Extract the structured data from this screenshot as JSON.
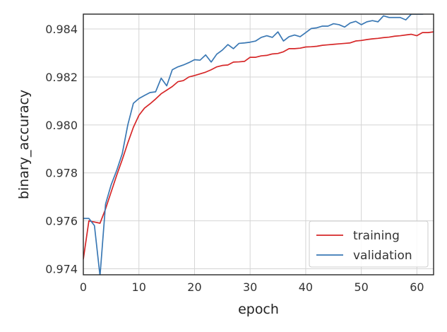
{
  "chart_data": {
    "type": "line",
    "title": "",
    "xlabel": "epoch",
    "ylabel": "binary_accuracy",
    "xlim": [
      0,
      63
    ],
    "ylim": [
      0.97375,
      0.98462
    ],
    "xticks": [
      "0",
      "10",
      "20",
      "30",
      "40",
      "50",
      "60"
    ],
    "xtick_values": [
      0,
      10,
      20,
      30,
      40,
      50,
      60
    ],
    "yticks": [
      "0.974",
      "0.976",
      "0.978",
      "0.980",
      "0.982",
      "0.984"
    ],
    "ytick_values": [
      0.974,
      0.976,
      0.978,
      0.98,
      0.982,
      0.984
    ],
    "grid": true,
    "legend": "lower-right",
    "series": [
      {
        "name": "training",
        "color": "#d62728",
        "values": [
          0.9744,
          0.976,
          0.97595,
          0.9759,
          0.9765,
          0.9772,
          0.9779,
          0.97855,
          0.97925,
          0.9799,
          0.9804,
          0.9807,
          0.98088,
          0.98108,
          0.9813,
          0.98145,
          0.9816,
          0.9818,
          0.98185,
          0.982,
          0.98206,
          0.98213,
          0.9822,
          0.9823,
          0.98242,
          0.98248,
          0.9825,
          0.98262,
          0.98263,
          0.98265,
          0.98282,
          0.98282,
          0.98288,
          0.9829,
          0.98296,
          0.98298,
          0.98305,
          0.98318,
          0.98318,
          0.9832,
          0.98325,
          0.98326,
          0.98328,
          0.98332,
          0.98334,
          0.98336,
          0.98338,
          0.9834,
          0.98342,
          0.9835,
          0.98352,
          0.98356,
          0.98359,
          0.98361,
          0.98364,
          0.98366,
          0.9837,
          0.98372,
          0.98375,
          0.98378,
          0.98372,
          0.98385,
          0.98385,
          0.98388
        ]
      },
      {
        "name": "validation",
        "color": "#3a78b4",
        "values": [
          0.9761,
          0.9761,
          0.9758,
          0.9737,
          0.9767,
          0.9775,
          0.9781,
          0.9788,
          0.98,
          0.9809,
          0.9811,
          0.98123,
          0.98135,
          0.98138,
          0.98195,
          0.98163,
          0.9823,
          0.98242,
          0.9825,
          0.9826,
          0.98272,
          0.9827,
          0.98292,
          0.98262,
          0.98295,
          0.98312,
          0.98335,
          0.98318,
          0.9834,
          0.98342,
          0.98345,
          0.9835,
          0.98365,
          0.98372,
          0.98365,
          0.98388,
          0.9835,
          0.98368,
          0.98375,
          0.98368,
          0.98385,
          0.98402,
          0.98405,
          0.98412,
          0.98412,
          0.98422,
          0.98418,
          0.98408,
          0.98425,
          0.98432,
          0.98418,
          0.9843,
          0.98435,
          0.9843,
          0.98455,
          0.98448,
          0.98448,
          0.98448,
          0.98438,
          0.98462,
          0.98462,
          0.98462,
          0.98468,
          0.98472
        ]
      }
    ]
  }
}
